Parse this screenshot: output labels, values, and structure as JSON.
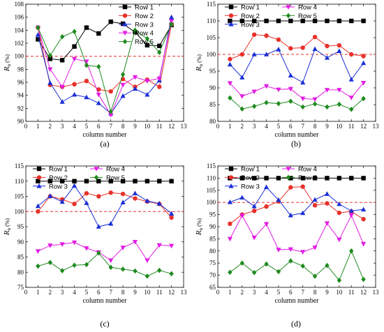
{
  "colors": {
    "Row 1": "#000000",
    "Row 2": "#e8312a",
    "Row 3": "#1a2fd6",
    "Row 4": "#e31be3",
    "Row 5": "#1f8a1f",
    "reference": "#e8312a"
  },
  "chart_data": [
    {
      "panel_label": "(a)",
      "type": "line",
      "xlabel": "column number",
      "ylabel_main": "R",
      "ylabel_sub": "n",
      "ylabel_unit": "(%)",
      "xlim": [
        0,
        13
      ],
      "ylim": [
        90,
        108
      ],
      "xticks": [
        0,
        1,
        2,
        3,
        4,
        5,
        6,
        7,
        8,
        9,
        10,
        11,
        12,
        13
      ],
      "yticks": [
        90,
        92,
        94,
        96,
        98,
        100,
        102,
        104,
        106,
        108
      ],
      "reference_line": 100,
      "legend_placement": "top-center",
      "x": [
        1,
        2,
        3,
        4,
        5,
        6,
        7,
        8,
        9,
        10,
        11,
        12
      ],
      "series": [
        {
          "name": "Row 1",
          "marker": "square",
          "values": [
            102.6,
            99.6,
            99.4,
            101.5,
            104.4,
            103.5,
            105.3,
            105.0,
            103.7,
            101.7,
            101.6,
            104.8
          ]
        },
        {
          "name": "Row 2",
          "marker": "circle",
          "values": [
            104.4,
            95.6,
            95.3,
            95.7,
            96.2,
            94.9,
            94.6,
            96.5,
            95.3,
            96.4,
            95.3,
            104.9
          ]
        },
        {
          "name": "Row 3",
          "marker": "triangle-up",
          "values": [
            103.3,
            95.9,
            93.0,
            94.1,
            93.7,
            92.8,
            91.2,
            93.9,
            95.0,
            94.1,
            96.3,
            106.0
          ]
        },
        {
          "name": "Row 4",
          "marker": "triangle-down",
          "values": [
            104.4,
            98.0,
            95.3,
            99.6,
            99.2,
            94.1,
            91.0,
            95.6,
            96.8,
            96.2,
            96.6,
            105.4
          ]
        },
        {
          "name": "Row 5",
          "marker": "diamond",
          "values": [
            104.4,
            100.1,
            103.0,
            103.8,
            98.6,
            98.4,
            91.5,
            97.2,
            104.0,
            102.7,
            100.6,
            104.9
          ]
        }
      ]
    },
    {
      "panel_label": "(b)",
      "type": "line",
      "xlabel": "column number",
      "ylabel_main": "R",
      "ylabel_sub": "n",
      "ylabel_unit": "(%)",
      "xlim": [
        0,
        13
      ],
      "ylim": [
        80,
        115
      ],
      "xticks": [
        0,
        1,
        2,
        3,
        4,
        5,
        6,
        7,
        8,
        9,
        10,
        11,
        12,
        13
      ],
      "yticks": [
        80,
        85,
        90,
        95,
        100,
        105,
        110,
        115
      ],
      "reference_line": 100,
      "legend_placement": "top",
      "x": [
        1,
        2,
        3,
        4,
        5,
        6,
        7,
        8,
        9,
        10,
        11,
        12
      ],
      "series": [
        {
          "name": "Row 1",
          "marker": "square",
          "values": [
            110,
            110,
            110,
            110,
            110,
            110,
            110,
            110,
            110,
            110,
            110,
            110
          ]
        },
        {
          "name": "Row 2",
          "marker": "circle",
          "values": [
            98.6,
            100.0,
            105.9,
            105.6,
            104.4,
            101.8,
            102.0,
            105.2,
            102.5,
            102.7,
            100.0,
            99.5
          ]
        },
        {
          "name": "Row 3",
          "marker": "triangle-up",
          "values": [
            97.0,
            93.1,
            100.0,
            100.0,
            101.5,
            93.7,
            91.6,
            101.6,
            99.0,
            101.0,
            92.5,
            97.4
          ]
        },
        {
          "name": "Row 4",
          "marker": "triangle-down",
          "values": [
            91.4,
            87.5,
            88.9,
            90.5,
            89.5,
            89.7,
            86.8,
            86.6,
            89.4,
            89.4,
            87.1,
            91.5
          ]
        },
        {
          "name": "Row 5",
          "marker": "diamond",
          "values": [
            87.0,
            83.7,
            84.5,
            85.6,
            85.3,
            86.0,
            84.3,
            85.2,
            84.3,
            85.1,
            83.6,
            86.8
          ]
        }
      ]
    },
    {
      "panel_label": "(c)",
      "type": "line",
      "xlabel": "column number",
      "ylabel_main": "R",
      "ylabel_sub": "n",
      "ylabel_unit": "(%)",
      "xlim": [
        0,
        13
      ],
      "ylim": [
        75,
        115
      ],
      "xticks": [
        0,
        1,
        2,
        3,
        4,
        5,
        6,
        7,
        8,
        9,
        10,
        11,
        12,
        13
      ],
      "yticks": [
        75,
        80,
        85,
        90,
        95,
        100,
        105,
        110,
        115
      ],
      "reference_line": 100,
      "legend_placement": "top",
      "x": [
        1,
        2,
        3,
        4,
        5,
        6,
        7,
        8,
        9,
        10,
        11,
        12
      ],
      "series": [
        {
          "name": "Row 1",
          "marker": "square",
          "values": [
            110,
            110,
            110,
            110,
            110,
            110,
            110,
            110,
            110,
            110,
            110,
            110
          ]
        },
        {
          "name": "Row 2",
          "marker": "circle",
          "values": [
            100.0,
            105.0,
            104.0,
            102.5,
            106.0,
            105.0,
            106.2,
            105.8,
            104.3,
            103.3,
            102.5,
            98.0
          ]
        },
        {
          "name": "Row 3",
          "marker": "triangle-up",
          "values": [
            101.8,
            105.1,
            103.2,
            108.5,
            102.8,
            95.0,
            96.0,
            103.0,
            106.0,
            103.5,
            102.6,
            99.3
          ]
        },
        {
          "name": "Row 4",
          "marker": "triangle-down",
          "values": [
            86.9,
            88.8,
            89.2,
            89.8,
            87.9,
            86.6,
            83.9,
            88.1,
            90.0,
            83.9,
            88.9,
            88.7
          ]
        },
        {
          "name": "Row 5",
          "marker": "diamond",
          "values": [
            82.0,
            83.2,
            80.5,
            82.3,
            82.5,
            86.3,
            81.6,
            81.0,
            80.4,
            78.7,
            80.6,
            79.5
          ]
        }
      ]
    },
    {
      "panel_label": "(d)",
      "type": "line",
      "xlabel": "column number",
      "ylabel_main": "R",
      "ylabel_sub": "n",
      "ylabel_unit": "(%)",
      "xlim": [
        0,
        13
      ],
      "ylim": [
        65,
        115
      ],
      "xticks": [
        0,
        1,
        2,
        3,
        4,
        5,
        6,
        7,
        8,
        9,
        10,
        11,
        12,
        13
      ],
      "yticks": [
        65,
        70,
        75,
        80,
        85,
        90,
        95,
        100,
        105,
        110,
        115
      ],
      "reference_line": 100,
      "legend_placement": "top",
      "x": [
        1,
        2,
        3,
        4,
        5,
        6,
        7,
        8,
        9,
        10,
        11,
        12
      ],
      "series": [
        {
          "name": "Row 1",
          "marker": "square",
          "values": [
            110,
            110,
            110,
            110,
            110,
            110,
            110,
            110,
            110,
            110,
            110,
            110
          ]
        },
        {
          "name": "Row 2",
          "marker": "circle",
          "values": [
            91.2,
            95.0,
            96.5,
            98.3,
            100.4,
            106.2,
            106.5,
            98.8,
            99.6,
            95.7,
            96.3,
            93.1
          ]
        },
        {
          "name": "Row 3",
          "marker": "triangle-up",
          "values": [
            100.1,
            102.0,
            98.4,
            106.3,
            101.0,
            94.7,
            95.6,
            101.1,
            103.5,
            99.3,
            96.5,
            97.1
          ]
        },
        {
          "name": "Row 4",
          "marker": "triangle-down",
          "values": [
            85.0,
            94.6,
            85.5,
            91.1,
            80.5,
            80.7,
            79.6,
            81.4,
            91.4,
            84.7,
            94.7,
            82.9
          ]
        },
        {
          "name": "Row 5",
          "marker": "diamond",
          "values": [
            71.2,
            75.0,
            71.1,
            74.6,
            71.5,
            75.9,
            73.8,
            69.6,
            74.0,
            67.9,
            80.0,
            68.3
          ]
        }
      ]
    }
  ]
}
